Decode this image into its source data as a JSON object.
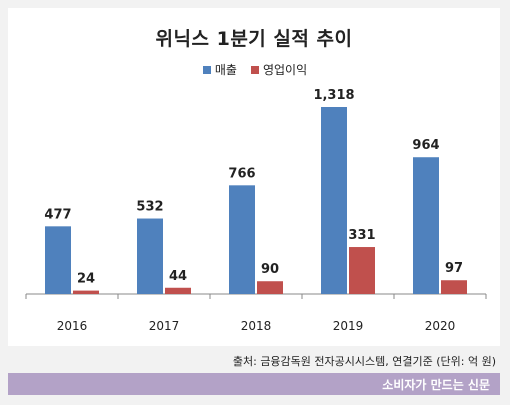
{
  "chart_data": {
    "type": "bar",
    "title": "위닉스 1분기 실적 추이",
    "categories": [
      "2016",
      "2017",
      "2018",
      "2019",
      "2020"
    ],
    "series": [
      {
        "name": "매출",
        "color": "#4f81bd",
        "values": [
          477,
          532,
          766,
          1318,
          964
        ],
        "labels": [
          "477",
          "532",
          "766",
          "1,318",
          "964"
        ]
      },
      {
        "name": "영업이익",
        "color": "#c0504d",
        "values": [
          24,
          44,
          90,
          331,
          97
        ],
        "labels": [
          "24",
          "44",
          "90",
          "331",
          "97"
        ]
      }
    ],
    "ylim": [
      0,
      1318
    ],
    "grid": false,
    "legend_position": "top-center"
  },
  "source": "출처: 금융감독원 전자공시시스템, 연결기준 (단위: 억 원)",
  "footer": "소비자가 만드는 신문"
}
